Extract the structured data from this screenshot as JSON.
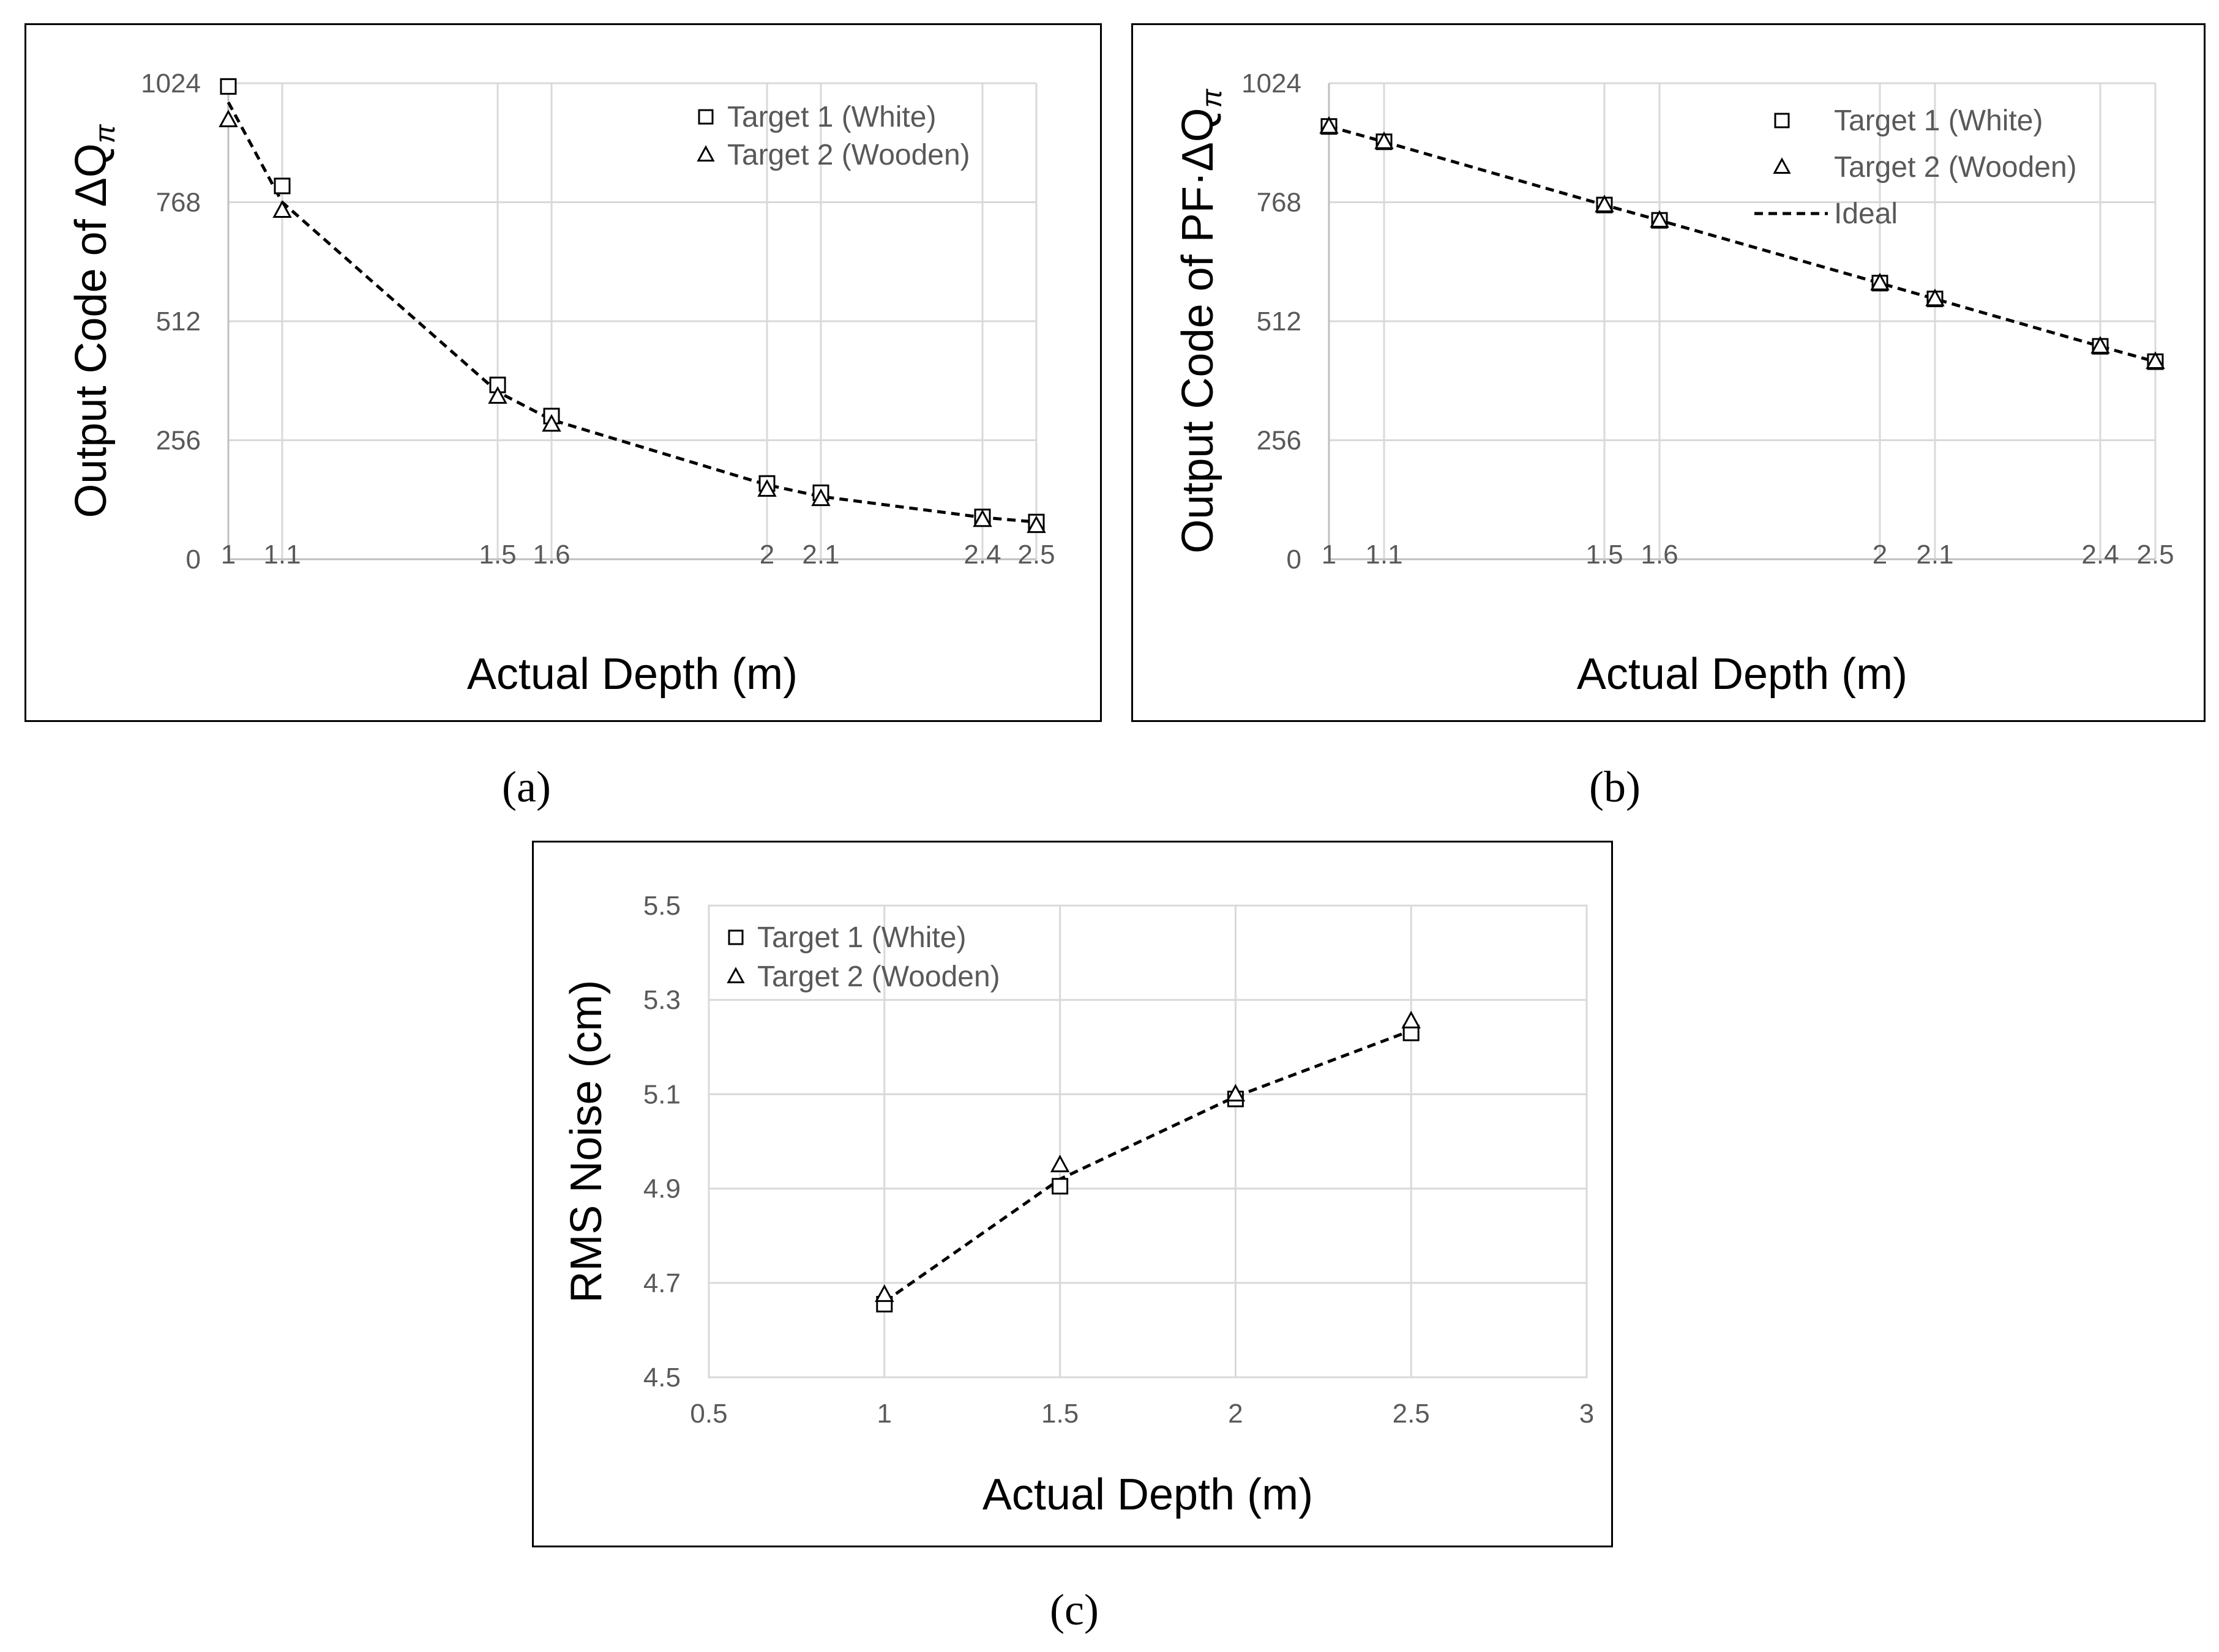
{
  "chart_data": [
    {
      "id": "a",
      "type": "line",
      "caption": "(a)",
      "ylabel": "Output Code of ΔQ",
      "ylabel_sub": "π",
      "xlabel": "Actual Depth (m)",
      "xlim": [
        1,
        2.5
      ],
      "ylim": [
        0,
        1024
      ],
      "xticks": [
        1,
        1.1,
        1.5,
        1.6,
        2,
        2.1,
        2.4,
        2.5
      ],
      "xtick_labels": [
        "1",
        "1.1",
        "1.5",
        "1.6",
        "2",
        "2.1",
        "2.4",
        "2.5"
      ],
      "yticks": [
        0,
        256,
        512,
        768,
        1024
      ],
      "ytick_labels": [
        "0",
        "256",
        "512",
        "768",
        "1024"
      ],
      "grid": true,
      "legend_position": "top-right",
      "series": [
        {
          "name": "Target 1 (White)",
          "marker": "square",
          "x": [
            1,
            1.1,
            1.5,
            1.6,
            2,
            2.1,
            2.4,
            2.5
          ],
          "y": [
            1017,
            803,
            375,
            308,
            163,
            143,
            91,
            80
          ]
        },
        {
          "name": "Target 2 (Wooden)",
          "marker": "triangle",
          "x": [
            1,
            1.1,
            1.5,
            1.6,
            2,
            2.1,
            2.4,
            2.5
          ],
          "y": [
            945,
            750,
            350,
            290,
            150,
            130,
            85,
            72
          ]
        },
        {
          "name": "fit",
          "marker": "none",
          "dashed": true,
          "in_legend": false,
          "x": [
            1,
            1.1,
            1.5,
            1.6,
            2,
            2.1,
            2.4,
            2.5
          ],
          "y": [
            983,
            768,
            360,
            300,
            160,
            135,
            90,
            80
          ]
        }
      ]
    },
    {
      "id": "b",
      "type": "line",
      "caption": "(b)",
      "ylabel": "Output Code of PF·ΔQ",
      "ylabel_sub": "π",
      "xlabel": "Actual Depth (m)",
      "xlim": [
        1,
        2.5
      ],
      "ylim": [
        0,
        1024
      ],
      "xticks": [
        1,
        1.1,
        1.5,
        1.6,
        2,
        2.1,
        2.4,
        2.5
      ],
      "xtick_labels": [
        "1",
        "1.1",
        "1.5",
        "1.6",
        "2",
        "2.1",
        "2.4",
        "2.5"
      ],
      "yticks": [
        0,
        256,
        512,
        768,
        1024
      ],
      "ytick_labels": [
        "0",
        "256",
        "512",
        "768",
        "1024"
      ],
      "grid": true,
      "legend_position": "top-right",
      "series": [
        {
          "name": "Target 1 (White)",
          "marker": "square",
          "x": [
            1,
            1.1,
            1.5,
            1.6,
            2,
            2.1,
            2.4,
            2.5
          ],
          "y": [
            931,
            898,
            762,
            729,
            594,
            560,
            458,
            425
          ]
        },
        {
          "name": "Target 2 (Wooden)",
          "marker": "triangle",
          "x": [
            1,
            1.1,
            1.5,
            1.6,
            2,
            2.1,
            2.4,
            2.5
          ],
          "y": [
            931,
            898,
            762,
            729,
            594,
            560,
            458,
            425
          ]
        },
        {
          "name": "Ideal",
          "marker": "none",
          "dashed": true,
          "x": [
            1,
            1.1,
            1.5,
            1.6,
            2,
            2.1,
            2.4,
            2.5
          ],
          "y": [
            931,
            898,
            762,
            729,
            594,
            560,
            458,
            425
          ]
        }
      ]
    },
    {
      "id": "c",
      "type": "line",
      "caption": "(c)",
      "ylabel": "RMS Noise (cm)",
      "ylabel_sub": "",
      "xlabel": "Actual Depth (m)",
      "xlim": [
        0.5,
        3
      ],
      "ylim": [
        4.5,
        5.5
      ],
      "xticks": [
        0.5,
        1,
        1.5,
        2,
        2.5,
        3
      ],
      "xtick_labels": [
        "0.5",
        "1",
        "1.5",
        "2",
        "2.5",
        "3"
      ],
      "yticks": [
        4.5,
        4.7,
        4.9,
        5.1,
        5.3,
        5.5
      ],
      "ytick_labels": [
        "4.5",
        "4.7",
        "4.9",
        "5.1",
        "5.3",
        "5.5"
      ],
      "grid": true,
      "legend_position": "top-left",
      "series": [
        {
          "name": "Target 1 (White)",
          "marker": "square",
          "x": [
            1,
            1.5,
            2,
            2.5
          ],
          "y": [
            4.655,
            4.905,
            5.09,
            5.23
          ]
        },
        {
          "name": "Target 2 (Wooden)",
          "marker": "triangle",
          "x": [
            1,
            1.5,
            2,
            2.5
          ],
          "y": [
            4.675,
            4.95,
            5.1,
            5.255
          ]
        },
        {
          "name": "fit",
          "marker": "none",
          "dashed": true,
          "in_legend": false,
          "x": [
            1,
            1.5,
            2,
            2.5
          ],
          "y": [
            4.66,
            4.92,
            5.095,
            5.235
          ]
        }
      ]
    }
  ]
}
